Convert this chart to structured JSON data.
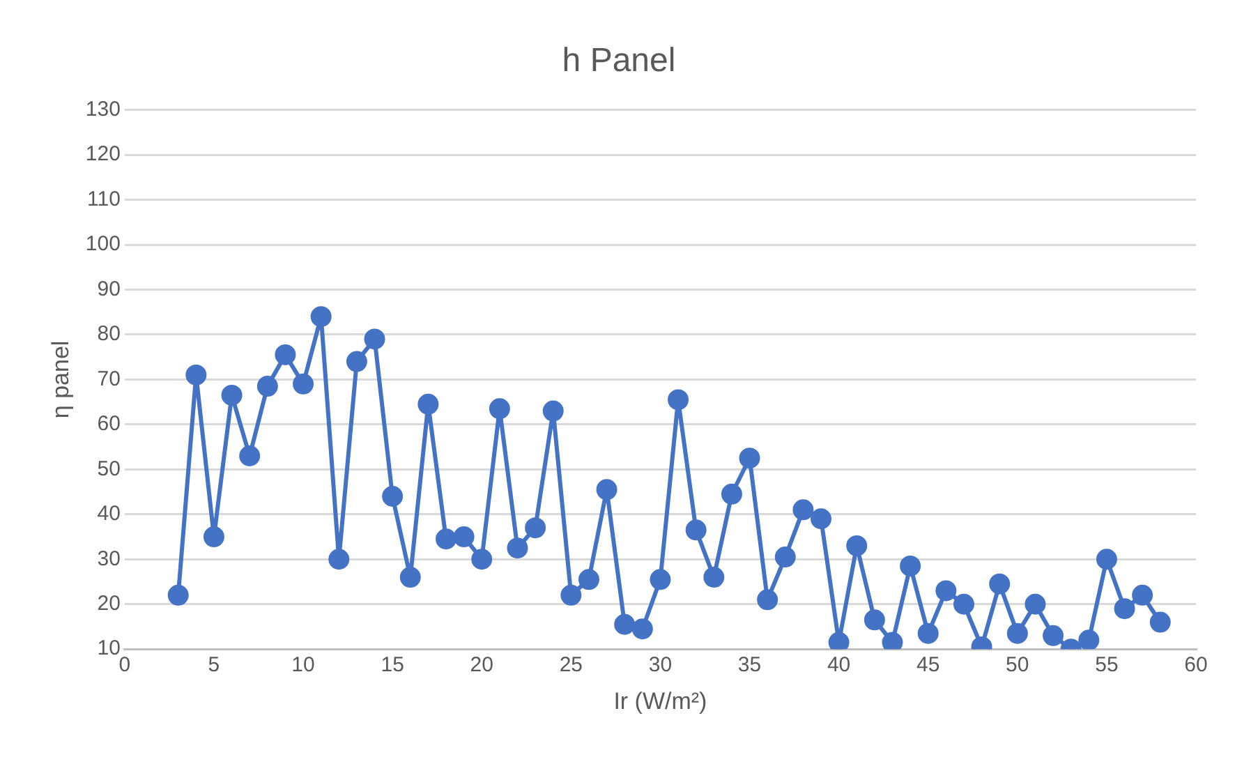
{
  "chart_data": {
    "type": "line",
    "title": "h Panel",
    "xlabel": "Ir (W/m²)",
    "ylabel": "η panel",
    "x": [
      3,
      4,
      5,
      6,
      7,
      8,
      9,
      10,
      11,
      12,
      13,
      14,
      15,
      16,
      17,
      18,
      19,
      20,
      21,
      22,
      23,
      24,
      25,
      26,
      27,
      28,
      29,
      30,
      31,
      32,
      33,
      34,
      35,
      36,
      37,
      38,
      39,
      40,
      41,
      42,
      43,
      44,
      45,
      46,
      47,
      48,
      49,
      50,
      51,
      52,
      53,
      54,
      55,
      56,
      57,
      58
    ],
    "series": [
      {
        "color": "#4472c4",
        "values": [
          22,
          71,
          35,
          66.5,
          53,
          68.5,
          75.5,
          69,
          84,
          30,
          74,
          79,
          44,
          26,
          64.5,
          34.5,
          35,
          30,
          63.5,
          32.5,
          37,
          63,
          22,
          25.5,
          45.5,
          15.5,
          14.5,
          25.5,
          65.5,
          36.5,
          26,
          44.5,
          52.5,
          21,
          30.5,
          41,
          39,
          11.5,
          33,
          16.5,
          11.5,
          28.5,
          13.5,
          23,
          20,
          10.5,
          24.5,
          13.5,
          20,
          13,
          10,
          12,
          30,
          19,
          22,
          16
        ]
      }
    ],
    "xlim": [
      0,
      60
    ],
    "xticks": [
      0,
      5,
      10,
      15,
      20,
      25,
      30,
      35,
      40,
      45,
      50,
      55,
      60
    ],
    "ylim": [
      10,
      130
    ],
    "yticks": [
      10,
      20,
      30,
      40,
      50,
      60,
      70,
      80,
      90,
      100,
      110,
      120,
      130
    ],
    "grid": "y",
    "legend": false,
    "marker": "circle",
    "line_style": "solid"
  }
}
